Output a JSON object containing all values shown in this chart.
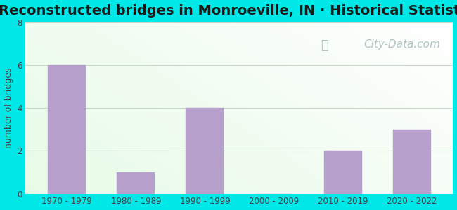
{
  "title": "Reconstructed bridges in Monroeville, IN · Historical Statistics",
  "categories": [
    "1970 - 1979",
    "1980 - 1989",
    "1990 - 1999",
    "2000 - 2009",
    "2010 - 2019",
    "2020 - 2022"
  ],
  "values": [
    6,
    1,
    4,
    0,
    2,
    3
  ],
  "bar_color": "#b8a0cc",
  "ylabel": "number of bridges",
  "ylim": [
    0,
    8
  ],
  "yticks": [
    0,
    2,
    4,
    6,
    8
  ],
  "background_outer": "#00e8e8",
  "grid_color": "#c8d8c8",
  "title_fontsize": 14,
  "axis_label_fontsize": 9,
  "tick_fontsize": 8.5,
  "watermark_text": "City-Data.com",
  "watermark_color": "#a8c0c0",
  "watermark_fontsize": 11
}
